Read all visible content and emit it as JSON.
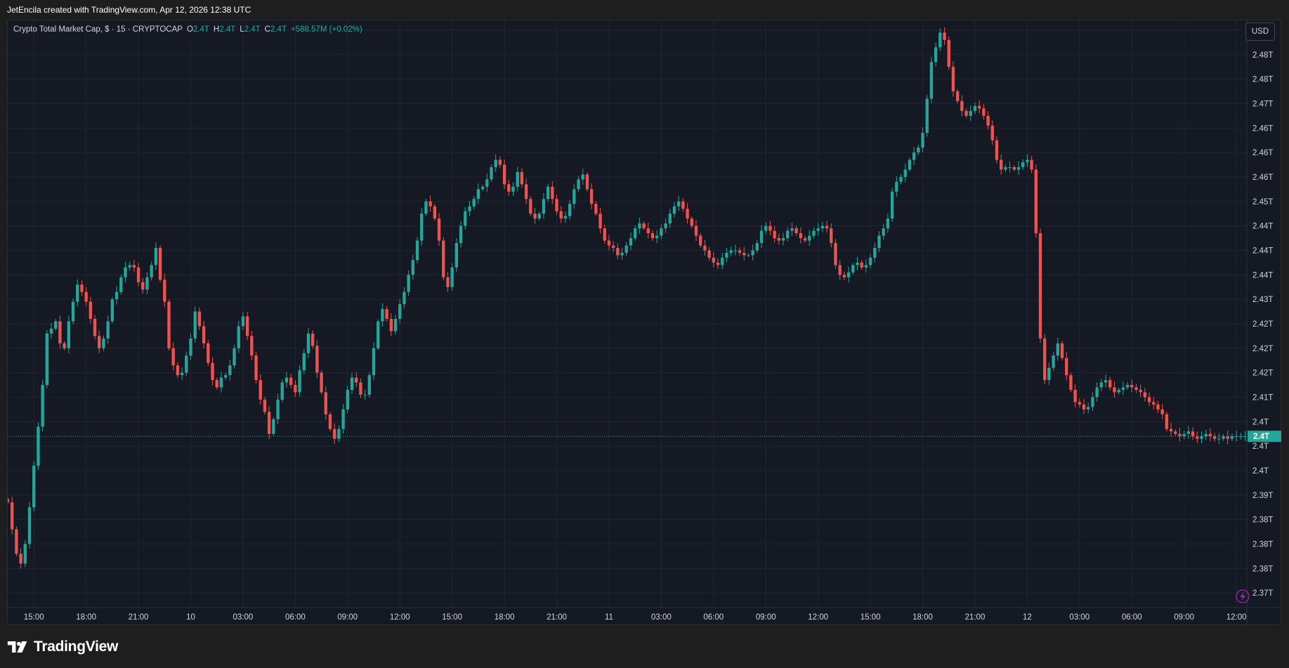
{
  "header": {
    "credit": "JetEncila created with TradingView.com, Apr 12, 2026 12:38 UTC"
  },
  "legend": {
    "symbol": "Crypto Total Market Cap, $ · 15 · CRYPTOCAP",
    "o_label": "O",
    "o_value": "2.4T",
    "h_label": "H",
    "h_value": "2.4T",
    "l_label": "L",
    "l_value": "2.4T",
    "c_label": "C",
    "c_value": "2.4T",
    "change": "+588.57M (+0.02%)"
  },
  "currency_button": "USD",
  "brand": {
    "name": "TradingView"
  },
  "colors": {
    "up": "#26a69a",
    "down": "#ef5350",
    "background": "#151924",
    "grid": "#212532",
    "text": "#d1d4dc"
  },
  "icons": {
    "lightning": "lightning-icon",
    "logo": "tradingview-logo-icon"
  },
  "chart_data": {
    "type": "candlestick",
    "interval": "15",
    "currency": "USD",
    "y_ticks": [
      "2.48T",
      "2.48T",
      "2.48T",
      "2.47T",
      "2.46T",
      "2.46T",
      "2.46T",
      "2.45T",
      "2.44T",
      "2.44T",
      "2.44T",
      "2.43T",
      "2.42T",
      "2.42T",
      "2.42T",
      "2.41T",
      "2.4T",
      "2.4T",
      "2.4T",
      "2.39T",
      "2.38T",
      "2.38T",
      "2.38T",
      "2.37T"
    ],
    "y_tick_values": [
      2.4825,
      2.4775,
      2.4725,
      2.4675,
      2.4625,
      2.4575,
      2.4525,
      2.4475,
      2.4425,
      2.4375,
      2.4325,
      2.4275,
      2.4225,
      2.4175,
      2.4125,
      2.4075,
      2.4025,
      2.3975,
      2.3925,
      2.3875,
      2.3825,
      2.3775,
      2.3725,
      2.3675
    ],
    "ylim": [
      2.3645,
      2.4845
    ],
    "x_ticks": [
      "15:00",
      "18:00",
      "21:00",
      "10",
      "03:00",
      "06:00",
      "09:00",
      "12:00",
      "15:00",
      "18:00",
      "21:00",
      "11",
      "03:00",
      "06:00",
      "09:00",
      "12:00",
      "15:00",
      "18:00",
      "21:00",
      "12",
      "03:00",
      "06:00",
      "09:00",
      "12:00"
    ],
    "x_tick_hours": [
      15,
      18,
      21,
      24,
      27,
      30,
      33,
      36,
      39,
      42,
      45,
      48,
      51,
      54,
      57,
      60,
      63,
      66,
      69,
      72,
      75,
      78,
      81,
      84
    ],
    "xlim_hours": [
      13.5,
      84.6
    ],
    "last_price": 2.3995,
    "last_price_label": "2.4T",
    "close_path": [
      [
        13.5,
        2.386
      ],
      [
        13.75,
        2.3805
      ],
      [
        14.0,
        2.3755
      ],
      [
        14.25,
        2.3735
      ],
      [
        14.5,
        2.3775
      ],
      [
        14.75,
        2.385
      ],
      [
        15.0,
        2.3935
      ],
      [
        15.25,
        2.4015
      ],
      [
        15.5,
        2.41
      ],
      [
        15.75,
        2.4205
      ],
      [
        16.0,
        2.4215
      ],
      [
        16.25,
        2.423
      ],
      [
        16.5,
        2.4185
      ],
      [
        16.75,
        2.4175
      ],
      [
        17.0,
        2.423
      ],
      [
        17.25,
        2.427
      ],
      [
        17.5,
        2.4305
      ],
      [
        17.75,
        2.429
      ],
      [
        18.0,
        2.427
      ],
      [
        18.25,
        2.4235
      ],
      [
        18.5,
        2.42
      ],
      [
        18.75,
        2.4175
      ],
      [
        19.0,
        2.4195
      ],
      [
        19.25,
        2.423
      ],
      [
        19.5,
        2.4275
      ],
      [
        19.75,
        2.429
      ],
      [
        20.0,
        2.432
      ],
      [
        20.25,
        2.434
      ],
      [
        20.5,
        2.4345
      ],
      [
        20.75,
        2.434
      ],
      [
        21.0,
        2.431
      ],
      [
        21.25,
        2.4295
      ],
      [
        21.5,
        2.432
      ],
      [
        21.75,
        2.4345
      ],
      [
        22.0,
        2.438
      ],
      [
        22.25,
        2.4315
      ],
      [
        22.5,
        2.427
      ],
      [
        22.75,
        2.4175
      ],
      [
        23.0,
        2.414
      ],
      [
        23.25,
        2.412
      ],
      [
        23.5,
        2.4125
      ],
      [
        23.75,
        2.416
      ],
      [
        24.0,
        2.4195
      ],
      [
        24.25,
        2.425
      ],
      [
        24.5,
        2.422
      ],
      [
        24.75,
        2.4185
      ],
      [
        25.0,
        2.4145
      ],
      [
        25.25,
        2.411
      ],
      [
        25.5,
        2.4095
      ],
      [
        25.75,
        2.4115
      ],
      [
        26.0,
        2.412
      ],
      [
        26.25,
        2.414
      ],
      [
        26.5,
        2.4175
      ],
      [
        26.75,
        2.422
      ],
      [
        27.0,
        2.424
      ],
      [
        27.25,
        2.42
      ],
      [
        27.5,
        2.416
      ],
      [
        27.75,
        2.411
      ],
      [
        28.0,
        2.407
      ],
      [
        28.25,
        2.4045
      ],
      [
        28.5,
        2.4
      ],
      [
        28.75,
        2.403
      ],
      [
        29.0,
        2.407
      ],
      [
        29.25,
        2.4105
      ],
      [
        29.5,
        2.4115
      ],
      [
        29.75,
        2.41
      ],
      [
        30.0,
        2.4085
      ],
      [
        30.25,
        2.413
      ],
      [
        30.5,
        2.4165
      ],
      [
        30.75,
        2.4205
      ],
      [
        31.0,
        2.418
      ],
      [
        31.25,
        2.4125
      ],
      [
        31.5,
        2.4085
      ],
      [
        31.75,
        2.404
      ],
      [
        32.0,
        2.401
      ],
      [
        32.25,
        2.399
      ],
      [
        32.5,
        2.401
      ],
      [
        32.75,
        2.405
      ],
      [
        33.0,
        2.409
      ],
      [
        33.25,
        2.4115
      ],
      [
        33.5,
        2.4105
      ],
      [
        33.75,
        2.408
      ],
      [
        34.0,
        2.408
      ],
      [
        34.25,
        2.412
      ],
      [
        34.5,
        2.4175
      ],
      [
        34.75,
        2.423
      ],
      [
        35.0,
        2.4255
      ],
      [
        35.25,
        2.4235
      ],
      [
        35.5,
        2.421
      ],
      [
        35.75,
        2.4235
      ],
      [
        36.0,
        2.4265
      ],
      [
        36.25,
        2.429
      ],
      [
        36.5,
        2.4325
      ],
      [
        36.75,
        2.4355
      ],
      [
        37.0,
        2.4395
      ],
      [
        37.25,
        2.445
      ],
      [
        37.5,
        2.4475
      ],
      [
        37.75,
        2.4465
      ],
      [
        38.0,
        2.444
      ],
      [
        38.25,
        2.4395
      ],
      [
        38.5,
        2.432
      ],
      [
        38.75,
        2.43
      ],
      [
        39.0,
        2.434
      ],
      [
        39.25,
        2.439
      ],
      [
        39.5,
        2.4425
      ],
      [
        39.75,
        2.4455
      ],
      [
        40.0,
        2.4465
      ],
      [
        40.25,
        2.448
      ],
      [
        40.5,
        2.45
      ],
      [
        40.75,
        2.4505
      ],
      [
        41.0,
        2.452
      ],
      [
        41.25,
        2.4545
      ],
      [
        41.5,
        2.456
      ],
      [
        41.75,
        2.455
      ],
      [
        42.0,
        2.451
      ],
      [
        42.25,
        2.4495
      ],
      [
        42.5,
        2.4505
      ],
      [
        42.75,
        2.4535
      ],
      [
        43.0,
        2.451
      ],
      [
        43.25,
        2.448
      ],
      [
        43.5,
        2.445
      ],
      [
        43.75,
        2.444
      ],
      [
        44.0,
        2.445
      ],
      [
        44.25,
        2.448
      ],
      [
        44.5,
        2.4505
      ],
      [
        44.75,
        2.448
      ],
      [
        45.0,
        2.4455
      ],
      [
        45.25,
        2.444
      ],
      [
        45.5,
        2.4445
      ],
      [
        45.75,
        2.447
      ],
      [
        46.0,
        2.45
      ],
      [
        46.25,
        2.452
      ],
      [
        46.5,
        2.453
      ],
      [
        46.75,
        2.45
      ],
      [
        47.0,
        2.447
      ],
      [
        47.25,
        2.445
      ],
      [
        47.5,
        2.442
      ],
      [
        47.75,
        2.4395
      ],
      [
        48.0,
        2.4385
      ],
      [
        48.25,
        2.438
      ],
      [
        48.5,
        2.4365
      ],
      [
        48.75,
        2.437
      ],
      [
        49.0,
        2.4385
      ],
      [
        49.25,
        2.44
      ],
      [
        49.5,
        2.442
      ],
      [
        49.75,
        2.443
      ],
      [
        50.0,
        2.442
      ],
      [
        50.25,
        2.441
      ],
      [
        50.5,
        2.44
      ],
      [
        50.75,
        2.4405
      ],
      [
        51.0,
        2.442
      ],
      [
        51.25,
        2.443
      ],
      [
        51.5,
        2.445
      ],
      [
        51.75,
        2.4465
      ],
      [
        52.0,
        2.4475
      ],
      [
        52.25,
        2.446
      ],
      [
        52.5,
        2.444
      ],
      [
        52.75,
        2.4425
      ],
      [
        53.0,
        2.4405
      ],
      [
        53.25,
        2.4385
      ],
      [
        53.5,
        2.4375
      ],
      [
        53.75,
        2.436
      ],
      [
        54.0,
        2.435
      ],
      [
        54.25,
        2.4345
      ],
      [
        54.5,
        2.436
      ],
      [
        54.75,
        2.437
      ],
      [
        55.0,
        2.4375
      ],
      [
        55.25,
        2.4375
      ],
      [
        55.5,
        2.437
      ],
      [
        55.75,
        2.4365
      ],
      [
        56.0,
        2.4365
      ],
      [
        56.25,
        2.4375
      ],
      [
        56.5,
        2.439
      ],
      [
        56.75,
        2.4415
      ],
      [
        57.0,
        2.4425
      ],
      [
        57.25,
        2.4415
      ],
      [
        57.5,
        2.44
      ],
      [
        57.75,
        2.4395
      ],
      [
        58.0,
        2.44
      ],
      [
        58.25,
        2.4415
      ],
      [
        58.5,
        2.442
      ],
      [
        58.75,
        2.441
      ],
      [
        59.0,
        2.44
      ],
      [
        59.25,
        2.4395
      ],
      [
        59.5,
        2.4405
      ],
      [
        59.75,
        2.4415
      ],
      [
        60.0,
        2.442
      ],
      [
        60.25,
        2.4425
      ],
      [
        60.5,
        2.442
      ],
      [
        60.75,
        2.439
      ],
      [
        61.0,
        2.4345
      ],
      [
        61.25,
        2.4325
      ],
      [
        61.5,
        2.432
      ],
      [
        61.75,
        2.433
      ],
      [
        62.0,
        2.4345
      ],
      [
        62.25,
        2.435
      ],
      [
        62.5,
        2.434
      ],
      [
        62.75,
        2.4345
      ],
      [
        63.0,
        2.436
      ],
      [
        63.25,
        2.438
      ],
      [
        63.5,
        2.4405
      ],
      [
        63.75,
        2.442
      ],
      [
        64.0,
        2.444
      ],
      [
        64.25,
        2.4495
      ],
      [
        64.5,
        2.4515
      ],
      [
        64.75,
        2.4525
      ],
      [
        65.0,
        2.454
      ],
      [
        65.25,
        2.456
      ],
      [
        65.5,
        2.4575
      ],
      [
        65.75,
        2.4585
      ],
      [
        66.0,
        2.4615
      ],
      [
        66.25,
        2.4685
      ],
      [
        66.5,
        2.476
      ],
      [
        66.75,
        2.479
      ],
      [
        67.0,
        2.482
      ],
      [
        67.25,
        2.4805
      ],
      [
        67.5,
        2.475
      ],
      [
        67.75,
        2.47
      ],
      [
        68.0,
        2.468
      ],
      [
        68.25,
        2.466
      ],
      [
        68.5,
        2.465
      ],
      [
        68.75,
        2.466
      ],
      [
        69.0,
        2.467
      ],
      [
        69.25,
        2.4665
      ],
      [
        69.5,
        2.465
      ],
      [
        69.75,
        2.463
      ],
      [
        70.0,
        2.46
      ],
      [
        70.25,
        2.456
      ],
      [
        70.5,
        2.454
      ],
      [
        70.75,
        2.4545
      ],
      [
        71.0,
        2.4545
      ],
      [
        71.25,
        2.454
      ],
      [
        71.5,
        2.4545
      ],
      [
        71.75,
        2.4555
      ],
      [
        72.0,
        2.456
      ],
      [
        72.25,
        2.454
      ],
      [
        72.5,
        2.441
      ],
      [
        72.75,
        2.4195
      ],
      [
        73.0,
        2.411
      ],
      [
        73.25,
        2.4135
      ],
      [
        73.5,
        2.416
      ],
      [
        73.75,
        2.4185
      ],
      [
        74.0,
        2.4155
      ],
      [
        74.25,
        2.412
      ],
      [
        74.5,
        2.409
      ],
      [
        74.75,
        2.4065
      ],
      [
        75.0,
        2.406
      ],
      [
        75.25,
        2.405
      ],
      [
        75.5,
        2.4055
      ],
      [
        75.75,
        2.4075
      ],
      [
        76.0,
        2.4095
      ],
      [
        76.25,
        2.4105
      ],
      [
        76.5,
        2.411
      ],
      [
        76.75,
        2.4095
      ],
      [
        77.0,
        2.4085
      ],
      [
        77.25,
        2.409
      ],
      [
        77.5,
        2.4095
      ],
      [
        77.75,
        2.41
      ],
      [
        78.0,
        2.4095
      ],
      [
        78.25,
        2.409
      ],
      [
        78.5,
        2.4085
      ],
      [
        78.75,
        2.4075
      ],
      [
        79.0,
        2.4065
      ],
      [
        79.25,
        2.406
      ],
      [
        79.5,
        2.405
      ],
      [
        79.75,
        2.404
      ],
      [
        80.0,
        2.401
      ],
      [
        80.25,
        2.4005
      ],
      [
        80.5,
        2.4
      ],
      [
        80.75,
        2.3995
      ],
      [
        81.0,
        2.4
      ],
      [
        81.25,
        2.4005
      ],
      [
        81.5,
        2.3995
      ],
      [
        81.75,
        2.399
      ],
      [
        82.0,
        2.3995
      ],
      [
        82.25,
        2.4
      ],
      [
        82.5,
        2.3995
      ],
      [
        82.75,
        2.399
      ],
      [
        83.0,
        2.399
      ],
      [
        83.25,
        2.3995
      ],
      [
        83.5,
        2.399
      ],
      [
        83.75,
        2.3995
      ],
      [
        84.0,
        2.3995
      ],
      [
        84.25,
        2.3995
      ],
      [
        84.5,
        2.3995
      ]
    ]
  }
}
